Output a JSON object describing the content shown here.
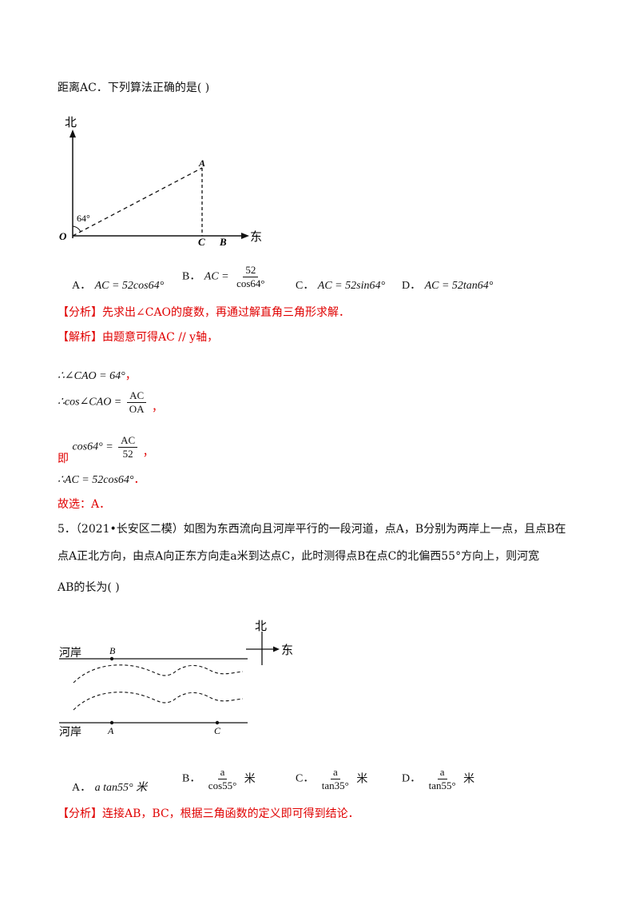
{
  "q4": {
    "intro_text": "距离AC．下列算法正确的是( )",
    "figure": {
      "north_label": "北",
      "east_label": "东",
      "angle_label": "64°",
      "point_A": "A",
      "point_O": "O",
      "point_C": "C",
      "point_B": "B"
    },
    "options": {
      "A": {
        "letter": "A．",
        "text": "AC = 52cos64°"
      },
      "B": {
        "letter": "B．",
        "lhs": "AC =",
        "num": "52",
        "den": "cos64°"
      },
      "C": {
        "letter": "C．",
        "text": "AC = 52sin64°"
      },
      "D": {
        "letter": "D．",
        "text": "AC = 52tan64°"
      }
    },
    "analysis": {
      "tag": "【分析】",
      "text": "先求出∠CAO的度数，再通过解直角三角形求解．"
    },
    "solution": {
      "tag": "【解析】",
      "text": "由题意可得AC // y轴，",
      "step1": "∴∠CAO = 64°",
      "step1_tail": "，",
      "step2_lhs": "∴cos∠CAO =",
      "step2_num": "AC",
      "step2_den": "OA",
      "step2_tail": "，",
      "step3_prefix": "即",
      "step3_lhs": "cos64° =",
      "step3_num": "AC",
      "step3_den": "52",
      "step3_tail": "，",
      "step4": "∴AC = 52cos64°",
      "step4_tail": "．",
      "answer": "故选：A．"
    }
  },
  "q5": {
    "line1": "5．（2021•长安区二模）如图为东西流向且河岸平行的一段河道，点A，B分别为两岸上一点，且点B在",
    "line2": "点A正北方向，由点A向正东方向走a米到达点C，此时测得点B在点C的北偏西55°方向上，则河宽",
    "line3": "AB的长为( )",
    "figure": {
      "bank_top": "河岸",
      "bank_bottom": "河岸",
      "north_label": "北",
      "east_label": "东",
      "point_B": "B",
      "point_A": "A",
      "point_C": "C"
    },
    "options": {
      "A": {
        "letter": "A．",
        "text": "a tan55° 米"
      },
      "B": {
        "letter": "B．",
        "num": "a",
        "den": "cos55°",
        "unit": "米"
      },
      "C": {
        "letter": "C．",
        "num": "a",
        "den": "tan35°",
        "unit": "米"
      },
      "D": {
        "letter": "D．",
        "num": "a",
        "den": "tan55°",
        "unit": "米"
      }
    },
    "analysis": {
      "tag": "【分析】",
      "text": "连接AB，BC，根据三角函数的定义即可得到结论．"
    }
  }
}
